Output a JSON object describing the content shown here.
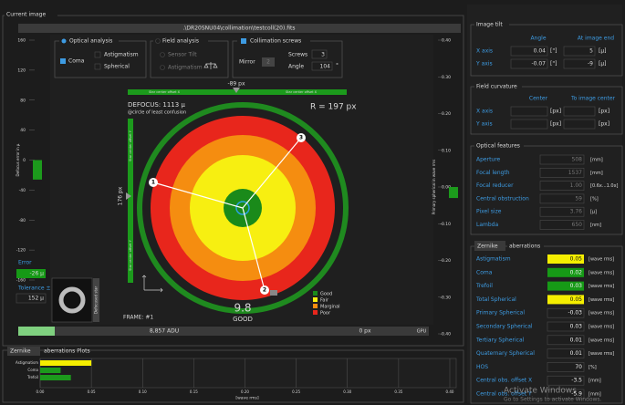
{
  "current_image": {
    "title": "Current image",
    "file_path": ".\\DR20SNU04\\collimation\\testcoll(20).fits",
    "optical_analysis": {
      "title": "Optical analysis",
      "coma": "Coma",
      "astigmatism": "Astigmatism",
      "spherical": "Spherical"
    },
    "field_analysis": {
      "title": "Field analysis",
      "sensor_tilt": "Sensor Tilt",
      "astigmatism": "Astigmatism"
    },
    "collimation_screws": {
      "title": "Collimation screws",
      "mirror_label": "Mirror",
      "mirror_value": "2",
      "screws_label": "Screws",
      "screws_value": "3",
      "angle_label": "Angle",
      "angle_value": "104",
      "angle_unit": "°"
    },
    "offset_x": {
      "value": "-89 px",
      "label": "Star center offset X"
    },
    "offset_y": {
      "value": "176 px",
      "label": "Star center offset Y"
    },
    "defocus": "DEFOCUS: 1113 µ",
    "defocus_note": "@circle of least confusion",
    "radius": "R = 197 px",
    "markers": [
      "1",
      "2",
      "3"
    ],
    "legend": [
      "Good",
      "Fair",
      "Marginal",
      "Poor"
    ],
    "score": "9.8",
    "rating": "GOOD",
    "frame": "FRAME: #1",
    "error": {
      "label": "Error",
      "value": "-26 µ"
    },
    "tolerance": {
      "label": "Tolerance ±",
      "value": "152 µ"
    },
    "thumbnail_label": "Defocused star",
    "status_bar": {
      "adu": "8,857 ADU",
      "offset": "0 px",
      "mode": "GPU"
    }
  },
  "defocus_gauge": {
    "label": "Defocus error in µ",
    "ylim": [
      -160,
      160
    ],
    "yticks": [
      160,
      120,
      80,
      40,
      0,
      -40,
      -80,
      -120,
      -160
    ],
    "value": -26,
    "color": "#1c9a1c"
  },
  "spherical_gauge": {
    "label": "Primary spherical in wave rms",
    "ylim": [
      -0.4,
      0.4
    ],
    "yticks": [
      {
        "value": 0.4,
        "label": "0.40"
      },
      {
        "value": 0.3,
        "label": "0.30"
      },
      {
        "value": 0.2,
        "label": "0.20"
      },
      {
        "value": 0.1,
        "label": "0.10"
      },
      {
        "value": 0,
        "label": "0.00"
      },
      {
        "value": -0.1,
        "label": "-0.10"
      },
      {
        "value": -0.2,
        "label": "-0.20"
      },
      {
        "value": -0.3,
        "label": "-0.30"
      },
      {
        "value": -0.4,
        "label": "-0.40"
      }
    ],
    "value": -0.03,
    "color": "#1c9a1c"
  },
  "aberration_plot": {
    "dropdown": "Zernike",
    "title": "aberrations Plots",
    "categories": [
      "Astigmatism",
      "Coma",
      "Trefoil"
    ],
    "values": [
      0.05,
      0.02,
      0.03
    ],
    "colors": [
      "#f5ee00",
      "#1c9a1c",
      "#1c9a1c"
    ],
    "xlim": [
      0,
      0.4
    ],
    "xticks": [
      {
        "value": 0,
        "label": "0.00"
      },
      {
        "value": 0.05,
        "label": "0.05"
      },
      {
        "value": 0.1,
        "label": "0.10"
      },
      {
        "value": 0.15,
        "label": "0.15"
      },
      {
        "value": 0.2,
        "label": "0.20"
      },
      {
        "value": 0.25,
        "label": "0.25"
      },
      {
        "value": 0.3,
        "label": "0.30"
      },
      {
        "value": 0.35,
        "label": "0.35"
      },
      {
        "value": 0.4,
        "label": "0.40"
      }
    ],
    "xlabel": "[wave rms]"
  },
  "image_tilt": {
    "title": "Image tilt",
    "headers": [
      "Angle",
      "At image end"
    ],
    "rows": [
      {
        "label": "X axis",
        "angle": "0.04",
        "angle_unit": "[\"]",
        "end": "5",
        "end_unit": "[µ]"
      },
      {
        "label": "Y axis",
        "angle": "-0.07",
        "angle_unit": "[\"]",
        "end": "-9",
        "end_unit": "[µ]"
      }
    ]
  },
  "field_curvature": {
    "title": "Field curvature",
    "headers": [
      "Center",
      "To image center"
    ],
    "rows": [
      {
        "label": "X axis",
        "center_unit": "[px]",
        "image_unit": "[px]"
      },
      {
        "label": "Y axis",
        "center_unit": "[px]",
        "image_unit": "[px]"
      }
    ]
  },
  "optical_features": {
    "title": "Optical features",
    "rows": [
      {
        "label": "Aperture",
        "value": "508",
        "unit": "[mm]"
      },
      {
        "label": "Focal length",
        "value": "1537",
        "unit": "[mm]"
      },
      {
        "label": "Focal reducer",
        "value": "1.00",
        "unit": "[0.6x...1.0x]"
      },
      {
        "label": "Central obstruction",
        "value": "59",
        "unit": "[%]"
      },
      {
        "label": "Pixel size",
        "value": "3.76",
        "unit": "[µ]"
      },
      {
        "label": "Lambda",
        "value": "650",
        "unit": "[nm]"
      }
    ]
  },
  "zernike": {
    "dropdown": "Zernike",
    "title": "aberrations",
    "rows": [
      {
        "label": "Astigmatism",
        "value": "0.05",
        "unit": "[wave rms]",
        "color": "#f5ee00"
      },
      {
        "label": "Coma",
        "value": "0.02",
        "unit": "[wave rms]",
        "color": "#169a16"
      },
      {
        "label": "Trefoil",
        "value": "0.03",
        "unit": "[wave rms]",
        "color": "#169a16"
      },
      {
        "label": "Total Spherical",
        "value": "0.05",
        "unit": "[wave rms]",
        "color": "#f5ee00"
      },
      {
        "label": "Primary Spherical",
        "value": "-0.03",
        "unit": "[wave rms]"
      },
      {
        "label": "Secondary Spherical",
        "value": "0.03",
        "unit": "[wave rms]"
      },
      {
        "label": "Tertiary Spherical",
        "value": "0.01",
        "unit": "[wave rms]"
      },
      {
        "label": "Quaternary Spherical",
        "value": "0.01",
        "unit": "[wave rms]"
      },
      {
        "label": "HOS",
        "value": "70",
        "unit": "[%]"
      },
      {
        "label": "Central obs. offset X",
        "value": "-3.5",
        "unit": "[mm]"
      },
      {
        "label": "Central obs. offset Y",
        "value": "-5.9",
        "unit": "[mm]"
      }
    ]
  },
  "watermark": {
    "title": "Activate Windows",
    "subtitle": "Go to Settings to activate Windows."
  }
}
